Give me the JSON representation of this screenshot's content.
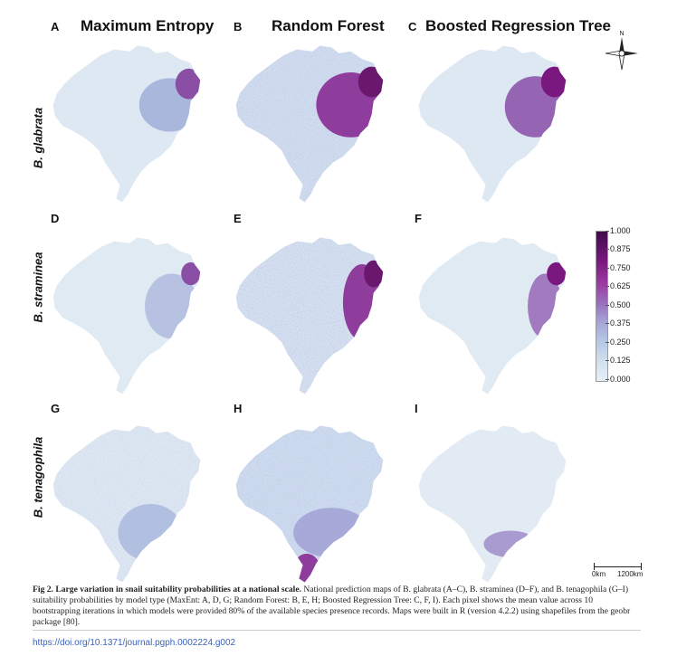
{
  "columns": [
    {
      "letter_top": "A",
      "title": "Maximum Entropy"
    },
    {
      "letter_top": "B",
      "title": "Random Forest"
    },
    {
      "letter_top": "C",
      "title": "Boosted Regression Tree"
    }
  ],
  "rows": [
    {
      "label": "B. glabrata",
      "letters": [
        "A",
        "B",
        "C"
      ]
    },
    {
      "label": "B. straminea",
      "letters": [
        "D",
        "E",
        "F"
      ]
    },
    {
      "label": "B. tenagophila",
      "letters": [
        "G",
        "H",
        "I"
      ]
    }
  ],
  "compass": {
    "north_label": "N"
  },
  "legend": {
    "ticks": [
      "1.000",
      "0.875",
      "0.750",
      "0.625",
      "0.500",
      "0.375",
      "0.250",
      "0.125",
      "0.000"
    ],
    "colors": {
      "max": "#3f0a4a",
      "high": "#7a1880",
      "mid": "#9a78c2",
      "low": "#b8cbe6",
      "min": "#e6eef6"
    }
  },
  "scalebar": {
    "left_label": "0km",
    "right_label": "1200km"
  },
  "caption": {
    "fig_label": "Fig 2.",
    "bold_title": "Large variation in snail suitability probabilities at a national scale.",
    "text": "National prediction maps of B. glabrata (A–C), B. straminea (D–F), and B. tenagophila (G–I) suitability probabilities by model type (MaxEnt: A, D, G; Random Forest: B, E, H; Boosted Regression Tree: C, F, I). Each pixel shows the mean value across 10 bootstrapping iterations in which models were provided 80% of the available species presence records. Maps were built in R (version 4.2.2) using shapefiles from the geobr package [80]."
  },
  "doi": "https://doi.org/10.1371/journal.pgph.0002224.g002"
}
